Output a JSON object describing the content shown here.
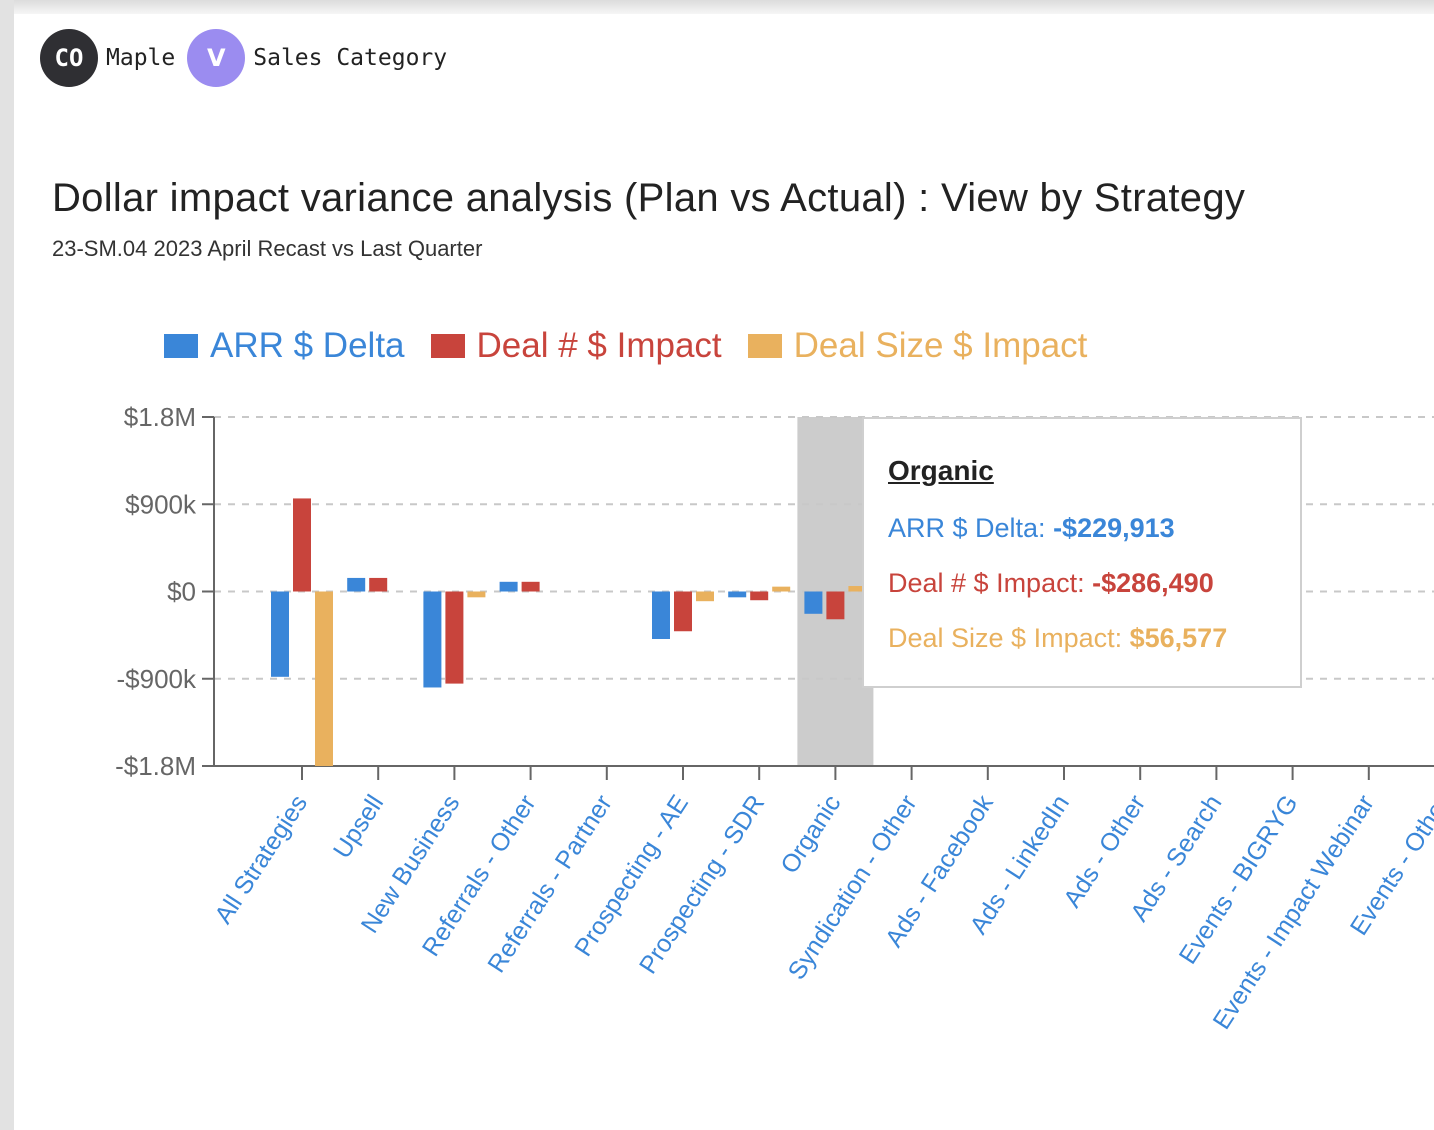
{
  "header": {
    "badges": [
      {
        "initials": "CO",
        "label": "Maple"
      },
      {
        "initials": "V",
        "label": "Sales Category"
      }
    ]
  },
  "colors": {
    "arr": "#3a86d8",
    "deal_num": "#c8443c",
    "deal_size": "#e9b15e",
    "highlight": "#cccccc"
  },
  "chart_data": {
    "type": "bar",
    "title": "Dollar impact variance analysis (Plan vs Actual) : View by Strategy",
    "subtitle": "23-SM.04 2023 April Recast vs Last Quarter",
    "categories": [
      "All Strategies",
      "Upsell",
      "New Business",
      "Referrals - Other",
      "Referrals - Partner",
      "Prospecting - AE",
      "Prospecting - SDR",
      "Organic",
      "Syndication - Other",
      "Ads - Facebook",
      "Ads - LinkedIn",
      "Ads - Other",
      "Ads - Search",
      "Events - BIGRYG",
      "Events - Impact Webinar",
      "Events - Other"
    ],
    "series": [
      {
        "name": "ARR $ Delta",
        "values": [
          -880000,
          140000,
          -990000,
          100000,
          0,
          -490000,
          -60000,
          -229913,
          0,
          0,
          0,
          0,
          0,
          0,
          0,
          0
        ]
      },
      {
        "name": "Deal # $ Impact",
        "values": [
          960000,
          140000,
          -950000,
          100000,
          0,
          -410000,
          -90000,
          -286490,
          0,
          0,
          0,
          0,
          0,
          0,
          0,
          0
        ]
      },
      {
        "name": "Deal Size $ Impact",
        "values": [
          -1800000,
          0,
          -60000,
          0,
          0,
          -100000,
          50000,
          56577,
          0,
          0,
          0,
          0,
          0,
          0,
          0,
          0
        ]
      }
    ],
    "ylim": [
      -1800000,
      1800000
    ],
    "yticks": [
      "$1.8M",
      "$900k",
      "$0",
      "-$900k",
      "-$1.8M"
    ],
    "grid": true,
    "legend": "top-left",
    "highlighted_category": "Organic"
  },
  "tooltip": {
    "title": "Organic",
    "rows": [
      {
        "label": "ARR $ Delta: ",
        "value": "-$229,913"
      },
      {
        "label": "Deal # $ Impact: ",
        "value": "-$286,490"
      },
      {
        "label": "Deal Size $ Impact: ",
        "value": "$56,577"
      }
    ]
  }
}
